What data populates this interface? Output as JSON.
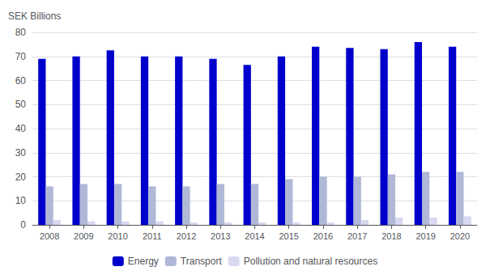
{
  "chart_data": {
    "type": "bar",
    "ylabel": "SEK Billions",
    "categories": [
      "2008",
      "2009",
      "2010",
      "2011",
      "2012",
      "2013",
      "2014",
      "2015",
      "2016",
      "2017",
      "2018",
      "2019",
      "2020"
    ],
    "series": [
      {
        "name": "Energy",
        "color": "#0000CD",
        "values": [
          69,
          70,
          72.5,
          70,
          70,
          69,
          66.5,
          70,
          74,
          73.5,
          73,
          76,
          74
        ]
      },
      {
        "name": "Transport",
        "color": "#B0B8D8",
        "values": [
          16,
          17,
          17,
          16,
          16,
          17,
          17,
          19,
          20,
          20,
          21,
          22,
          22
        ]
      },
      {
        "name": "Pollution and natural resources",
        "color": "#D8D8F0",
        "values": [
          2,
          1.5,
          1.5,
          1.5,
          1,
          1,
          1,
          1,
          1,
          2,
          3,
          3,
          3.5
        ]
      }
    ],
    "ylim": [
      0,
      80
    ],
    "yticks": [
      0,
      10,
      20,
      30,
      40,
      50,
      60,
      70,
      80
    ],
    "grid": true,
    "legend": "bottom"
  }
}
